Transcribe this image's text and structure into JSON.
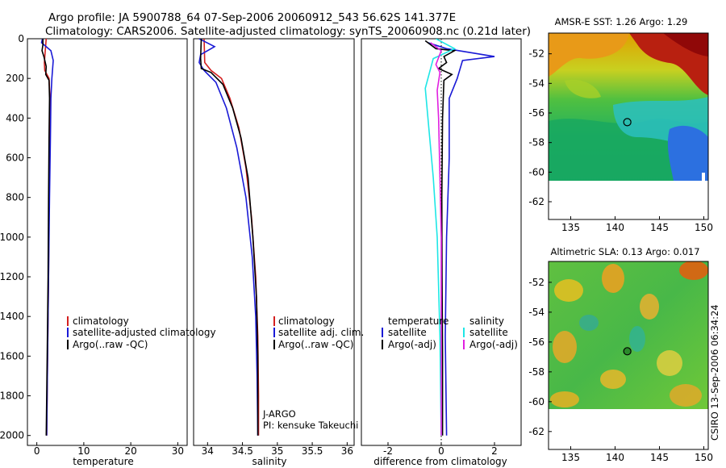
{
  "header": {
    "line1": "Argo profile: JA 5900788_64 07-Sep-2006 20060912_543 56.62S 141.377E",
    "line2": "Climatology: CARS2006. Satellite-adjusted climatology: synTS_20060908.nc (0.21d later)"
  },
  "colors": {
    "climatology": "#d42020",
    "satellite": "#1a1ad6",
    "argo": "#000000",
    "cyan": "#1ee6e6",
    "magenta": "#e020e0"
  },
  "depth_axis": {
    "range": [
      0,
      2050
    ],
    "ticks": [
      0,
      200,
      400,
      600,
      800,
      1000,
      1200,
      1400,
      1600,
      1800,
      2000
    ],
    "inverted": true
  },
  "chart_data": [
    {
      "type": "line",
      "name": "temperature-panel",
      "xlabel": "temperature",
      "xlim": [
        -2,
        32
      ],
      "xticks": [
        0,
        10,
        20,
        30
      ],
      "ylim": [
        0,
        2050
      ],
      "series": [
        {
          "name": "climatology",
          "color": "#d42020",
          "points": [
            [
              2,
              0
            ],
            [
              1.8,
              60
            ],
            [
              1.6,
              120
            ],
            [
              1.7,
              160
            ],
            [
              2.6,
              200
            ],
            [
              2.8,
              300
            ],
            [
              2.8,
              500
            ],
            [
              2.6,
              800
            ],
            [
              2.5,
              1200
            ],
            [
              2.3,
              1600
            ],
            [
              2.1,
              2000
            ]
          ]
        },
        {
          "name": "satellite-adjusted climatology",
          "color": "#1a1ad6",
          "points": [
            [
              1.2,
              0
            ],
            [
              1.0,
              20
            ],
            [
              3.0,
              60
            ],
            [
              3.5,
              110
            ],
            [
              3.2,
              200
            ],
            [
              3.0,
              300
            ],
            [
              2.9,
              500
            ],
            [
              2.7,
              800
            ],
            [
              2.5,
              1200
            ],
            [
              2.3,
              1600
            ],
            [
              2.1,
              2000
            ]
          ]
        },
        {
          "name": "Argo(..raw -QC)",
          "color": "#000000",
          "points": [
            [
              1.3,
              0
            ],
            [
              1.3,
              30
            ],
            [
              1.1,
              60
            ],
            [
              1.5,
              90
            ],
            [
              2.0,
              140
            ],
            [
              1.9,
              180
            ],
            [
              2.6,
              210
            ],
            [
              2.7,
              300
            ],
            [
              2.6,
              500
            ],
            [
              2.5,
              800
            ],
            [
              2.4,
              1200
            ],
            [
              2.2,
              1600
            ],
            [
              2.0,
              2000
            ]
          ]
        }
      ],
      "legend": [
        "climatology",
        "satellite-adjusted climatology",
        "Argo(..raw -QC)"
      ]
    },
    {
      "type": "line",
      "name": "salinity-panel",
      "xlabel": "salinity",
      "xlim": [
        33.8,
        36.1
      ],
      "xticks": [
        34,
        34.5,
        35,
        35.5,
        36
      ],
      "ylim": [
        0,
        2050
      ],
      "series": [
        {
          "name": "climatology",
          "color": "#d42020",
          "points": [
            [
              33.95,
              0
            ],
            [
              33.96,
              120
            ],
            [
              34.05,
              160
            ],
            [
              34.2,
              200
            ],
            [
              34.32,
              300
            ],
            [
              34.45,
              450
            ],
            [
              34.55,
              650
            ],
            [
              34.63,
              900
            ],
            [
              34.69,
              1200
            ],
            [
              34.72,
              1500
            ],
            [
              34.73,
              1800
            ],
            [
              34.73,
              2000
            ]
          ]
        },
        {
          "name": "satellite adj. clim.",
          "color": "#1a1ad6",
          "points": [
            [
              33.88,
              0
            ],
            [
              34.1,
              40
            ],
            [
              33.9,
              80
            ],
            [
              33.88,
              120
            ],
            [
              33.95,
              160
            ],
            [
              34.12,
              220
            ],
            [
              34.27,
              350
            ],
            [
              34.42,
              550
            ],
            [
              34.55,
              800
            ],
            [
              34.64,
              1100
            ],
            [
              34.69,
              1400
            ],
            [
              34.71,
              1700
            ],
            [
              34.72,
              2000
            ]
          ]
        },
        {
          "name": "Argo(..raw -QC)",
          "color": "#000000",
          "points": [
            [
              33.91,
              0
            ],
            [
              33.9,
              100
            ],
            [
              33.91,
              150
            ],
            [
              34.05,
              170
            ],
            [
              34.22,
              230
            ],
            [
              34.36,
              350
            ],
            [
              34.48,
              500
            ],
            [
              34.58,
              700
            ],
            [
              34.65,
              1000
            ],
            [
              34.7,
              1300
            ],
            [
              34.72,
              1600
            ],
            [
              34.72,
              2000
            ]
          ]
        }
      ],
      "legend": [
        "climatology",
        "satellite adj. clim.",
        "Argo(..raw -QC)"
      ],
      "annotation": [
        "J-ARGO",
        "PI: kensuke Takeuchi"
      ]
    },
    {
      "type": "line",
      "name": "difference-panel",
      "xlabel": "difference from climatology",
      "xlim": [
        -3,
        3
      ],
      "xticks": [
        -2,
        0,
        2
      ],
      "ylim": [
        0,
        2050
      ],
      "zero_line": true,
      "series": [
        {
          "name": "temperature satellite",
          "color": "#1a1ad6",
          "points": [
            [
              -0.5,
              20
            ],
            [
              0.2,
              50
            ],
            [
              2.0,
              90
            ],
            [
              0.8,
              110
            ],
            [
              0.6,
              200
            ],
            [
              0.3,
              300
            ],
            [
              0.3,
              600
            ],
            [
              0.2,
              1000
            ],
            [
              0.15,
              1500
            ],
            [
              0.2,
              2000
            ]
          ]
        },
        {
          "name": "temperature Argo(-adj)",
          "color": "#000000",
          "points": [
            [
              -0.6,
              10
            ],
            [
              -0.2,
              50
            ],
            [
              0.5,
              60
            ],
            [
              0.1,
              90
            ],
            [
              0.2,
              120
            ],
            [
              -0.1,
              150
            ],
            [
              0.4,
              180
            ],
            [
              0.1,
              210
            ],
            [
              0.05,
              400
            ],
            [
              0.02,
              800
            ],
            [
              0.03,
              1200
            ],
            [
              0.05,
              1600
            ],
            [
              0.05,
              2000
            ]
          ]
        },
        {
          "name": "salinity satellite",
          "color": "#1ee6e6",
          "points": [
            [
              -0.2,
              0
            ],
            [
              0.5,
              50
            ],
            [
              -0.3,
              100
            ],
            [
              -0.6,
              250
            ],
            [
              -0.5,
              400
            ],
            [
              -0.3,
              700
            ],
            [
              -0.15,
              1000
            ],
            [
              -0.05,
              1500
            ],
            [
              0,
              2000
            ]
          ]
        },
        {
          "name": "salinity Argo(-adj)",
          "color": "#e020e0",
          "points": [
            [
              -0.4,
              20
            ],
            [
              0.0,
              60
            ],
            [
              -0.2,
              130
            ],
            [
              -0.05,
              170
            ],
            [
              -0.15,
              260
            ],
            [
              -0.1,
              400
            ],
            [
              -0.05,
              700
            ],
            [
              0.0,
              1000
            ],
            [
              0.0,
              1500
            ],
            [
              0.0,
              2000
            ]
          ]
        }
      ],
      "legend_headers": [
        "temperature",
        "salinity"
      ],
      "legend_left": [
        "satellite",
        "Argo(-adj)"
      ],
      "legend_right": [
        "satellite",
        "Argo(-adj)"
      ]
    },
    {
      "type": "heatmap",
      "name": "sst-map",
      "title": "AMSR-E SST: 1.26 Argo: 1.29",
      "xlim": [
        132.5,
        150.5
      ],
      "ylim": [
        -63.2,
        -50.6
      ],
      "data_ylim": [
        -60,
        -50.6
      ],
      "xticks": [
        135,
        140,
        145,
        150
      ],
      "yticks": [
        -52,
        -54,
        -56,
        -58,
        -60,
        -62
      ],
      "marker": {
        "lon": 141.377,
        "lat": -56.62
      }
    },
    {
      "type": "heatmap",
      "name": "sla-map",
      "title": "Altimetric SLA: 0.13 Argo: 0.017",
      "xlim": [
        132.5,
        150.5
      ],
      "ylim": [
        -63.2,
        -50.6
      ],
      "data_ylim": [
        -60,
        -50.6
      ],
      "xticks": [
        135,
        140,
        145,
        150
      ],
      "yticks": [
        -52,
        -54,
        -56,
        -58,
        -60,
        -62
      ],
      "marker": {
        "lon": 141.377,
        "lat": -56.62
      }
    }
  ],
  "footer": {
    "credit": "CSIRO 13-Sep-2006 06:34:24"
  }
}
